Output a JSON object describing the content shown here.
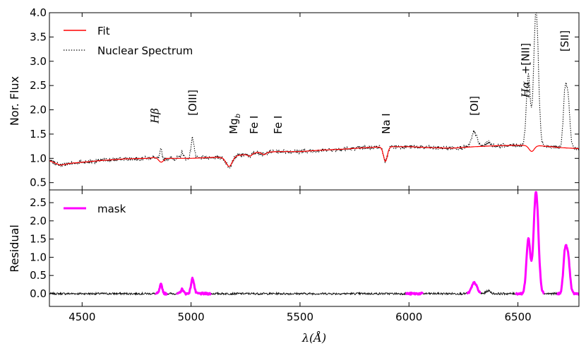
{
  "chart_data": [
    {
      "panel": "top",
      "type": "line",
      "ylabel": "Nor. Flux",
      "xlim": [
        4350,
        6780
      ],
      "ylim": [
        0.35,
        4.0
      ],
      "yticks": [
        0.5,
        1.0,
        1.5,
        2.0,
        2.5,
        3.0,
        3.5,
        4.0
      ],
      "ytick_labels": [
        "0.5",
        "1.0",
        "1.5",
        "2.0",
        "2.5",
        "3.0",
        "3.5",
        "4.0"
      ],
      "legend": {
        "position": "top-left",
        "entries": [
          {
            "label": "Fit",
            "color": "#ff0000",
            "style": "solid"
          },
          {
            "label": "Nuclear Spectrum",
            "color": "#000000",
            "style": "dotted"
          }
        ]
      },
      "baseline": [
        [
          4350,
          0.95
        ],
        [
          4400,
          0.86
        ],
        [
          4450,
          0.9
        ],
        [
          4500,
          0.92
        ],
        [
          4600,
          0.96
        ],
        [
          4700,
          0.99
        ],
        [
          4800,
          1.0
        ],
        [
          4850,
          1.03
        ],
        [
          4900,
          1.0
        ],
        [
          5000,
          1.0
        ],
        [
          5100,
          1.02
        ],
        [
          5150,
          1.02
        ],
        [
          5200,
          1.05
        ],
        [
          5250,
          1.08
        ],
        [
          5300,
          1.12
        ],
        [
          5400,
          1.14
        ],
        [
          5500,
          1.14
        ],
        [
          5600,
          1.17
        ],
        [
          5700,
          1.19
        ],
        [
          5800,
          1.22
        ],
        [
          5900,
          1.24
        ],
        [
          6000,
          1.24
        ],
        [
          6100,
          1.22
        ],
        [
          6200,
          1.21
        ],
        [
          6300,
          1.24
        ],
        [
          6400,
          1.26
        ],
        [
          6500,
          1.27
        ],
        [
          6600,
          1.26
        ],
        [
          6700,
          1.22
        ],
        [
          6780,
          1.2
        ]
      ],
      "absorption": [
        {
          "center": 4862,
          "width": 12,
          "depth": 0.1
        },
        {
          "center": 5175,
          "width": 14,
          "depth": 0.2
        },
        {
          "center": 5270,
          "width": 10,
          "depth": 0.05
        },
        {
          "center": 5335,
          "width": 10,
          "depth": 0.05
        },
        {
          "center": 5892,
          "width": 9,
          "depth": 0.3
        },
        {
          "center": 6563,
          "width": 12,
          "depth": 0.12
        }
      ],
      "emission": [
        {
          "center": 4862,
          "width": 6,
          "height": 0.25
        },
        {
          "center": 4959,
          "width": 6,
          "height": 0.12
        },
        {
          "center": 5007,
          "width": 7,
          "height": 0.42
        },
        {
          "center": 6300,
          "width": 12,
          "height": 0.3
        },
        {
          "center": 6364,
          "width": 10,
          "height": 0.08
        },
        {
          "center": 6548,
          "width": 9,
          "height": 1.5
        },
        {
          "center": 6583,
          "width": 11,
          "height": 2.8
        },
        {
          "center": 6716,
          "width": 8,
          "height": 1.1
        },
        {
          "center": 6731,
          "width": 8,
          "height": 0.9
        }
      ],
      "noise_amplitude": 0.04,
      "labels": [
        {
          "text": "Hβ",
          "wavelength": 4835,
          "y": 1.72,
          "italic": true
        },
        {
          "text": "[OIII]",
          "wavelength": 5007,
          "y": 1.88
        },
        {
          "text": "Mg",
          "subscript": "b",
          "wavelength": 5195,
          "y": 1.5
        },
        {
          "text": "Fe I",
          "wavelength": 5290,
          "y": 1.5
        },
        {
          "text": "Fe I",
          "wavelength": 5400,
          "y": 1.5
        },
        {
          "text": "Na I",
          "wavelength": 5895,
          "y": 1.5
        },
        {
          "text": "[OI]",
          "wavelength": 6300,
          "y": 1.88
        },
        {
          "text": "Hα",
          "wavelength": 6535,
          "y": 2.25,
          "italic": true
        },
        {
          "text": "+[NII]",
          "wavelength": 6535,
          "y": 2.73
        },
        {
          "text": "[SII]",
          "wavelength": 6716,
          "y": 3.2
        }
      ]
    },
    {
      "panel": "bottom",
      "type": "line",
      "ylabel": "Residual",
      "xlabel": "λ(Å)",
      "xlim": [
        4350,
        6780
      ],
      "ylim": [
        -0.35,
        2.85
      ],
      "xticks": [
        4500,
        5000,
        5500,
        6000,
        6500
      ],
      "xtick_labels": [
        "4500",
        "5000",
        "5500",
        "6000",
        "6500"
      ],
      "yticks": [
        0.0,
        0.5,
        1.0,
        1.5,
        2.0,
        2.5
      ],
      "ytick_labels": [
        "0.0",
        "0.5",
        "1.0",
        "1.5",
        "2.0",
        "2.5"
      ],
      "legend": {
        "position": "top-left",
        "entries": [
          {
            "label": "mask",
            "color": "#ff00ff",
            "style": "solid"
          }
        ]
      },
      "mask_ranges": [
        [
          4835,
          4890
        ],
        [
          4935,
          5090
        ],
        [
          5985,
          6065
        ],
        [
          6265,
          6330
        ],
        [
          6490,
          6620
        ],
        [
          6680,
          6780
        ]
      ]
    }
  ]
}
